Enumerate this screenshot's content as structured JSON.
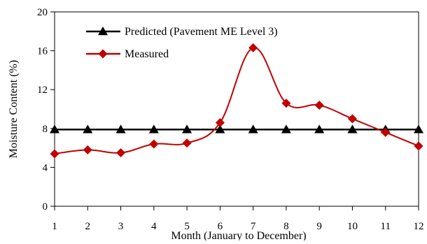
{
  "chart_data": {
    "type": "line",
    "xlabel": "Month (January to December)",
    "ylabel": "Moisture Content (%)",
    "categories": [
      "1",
      "2",
      "3",
      "4",
      "5",
      "6",
      "7",
      "8",
      "9",
      "10",
      "11",
      "12"
    ],
    "ylim": [
      0,
      20
    ],
    "yticks": [
      0,
      4,
      8,
      12,
      16,
      20
    ],
    "grid": false,
    "legend_position": "top-left",
    "series": [
      {
        "name": "Predicted (Pavement ME Level 3)",
        "color": "#000000",
        "marker": "triangle",
        "smooth": false,
        "values": [
          7.9,
          7.9,
          7.9,
          7.9,
          7.9,
          7.9,
          7.9,
          7.9,
          7.9,
          7.9,
          7.9,
          7.9
        ]
      },
      {
        "name": "Measured",
        "color": "#c00000",
        "marker": "diamond",
        "smooth": true,
        "values": [
          5.4,
          5.8,
          5.5,
          6.4,
          6.5,
          8.6,
          16.3,
          10.6,
          10.4,
          9.0,
          7.6,
          6.2
        ]
      }
    ]
  }
}
